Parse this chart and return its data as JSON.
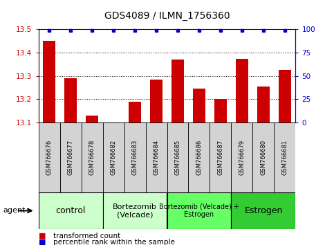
{
  "title": "GDS4089 / ILMN_1756360",
  "samples": [
    "GSM766676",
    "GSM766677",
    "GSM766678",
    "GSM766682",
    "GSM766683",
    "GSM766684",
    "GSM766685",
    "GSM766686",
    "GSM766687",
    "GSM766679",
    "GSM766680",
    "GSM766681"
  ],
  "values": [
    13.45,
    13.29,
    13.13,
    13.1,
    13.19,
    13.285,
    13.37,
    13.245,
    13.2,
    13.375,
    13.255,
    13.325
  ],
  "bar_color": "#cc0000",
  "dot_color": "#0000cc",
  "ylim_left": [
    13.1,
    13.5
  ],
  "ylim_right": [
    0,
    100
  ],
  "yticks_left": [
    13.1,
    13.2,
    13.3,
    13.4,
    13.5
  ],
  "yticks_right": [
    0,
    25,
    50,
    75,
    100
  ],
  "groups": [
    {
      "label": "control",
      "start": 0,
      "end": 3,
      "color": "#ccffcc",
      "fontsize": 9
    },
    {
      "label": "Bortezomib\n(Velcade)",
      "start": 3,
      "end": 6,
      "color": "#ccffcc",
      "fontsize": 8
    },
    {
      "label": "Bortezomib (Velcade) +\nEstrogen",
      "start": 6,
      "end": 9,
      "color": "#66ff66",
      "fontsize": 7
    },
    {
      "label": "Estrogen",
      "start": 9,
      "end": 12,
      "color": "#33cc33",
      "fontsize": 9
    }
  ],
  "agent_label": "agent",
  "legend_items": [
    {
      "label": "transformed count",
      "color": "#cc0000"
    },
    {
      "label": "percentile rank within the sample",
      "color": "#0000cc"
    }
  ],
  "bar_width": 0.6,
  "bg_color": "#ffffff",
  "tick_label_color_left": "#cc0000",
  "tick_label_color_right": "#0000cc",
  "sample_bg_color": "#d3d3d3",
  "title_fontsize": 10
}
